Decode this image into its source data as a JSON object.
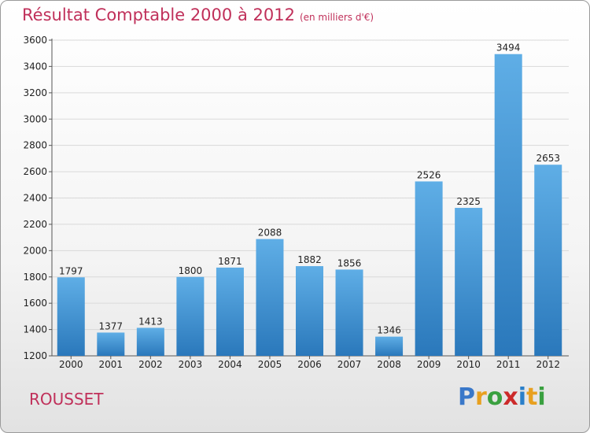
{
  "title": "Résultat Comptable 2000 à 2012",
  "subtitle": "(en milliers d'€)",
  "commune": "ROUSSET",
  "logo": {
    "letters": [
      "P",
      "r",
      "o",
      "x",
      "i",
      "t",
      "i"
    ],
    "colors": [
      "#3a78c9",
      "#e8a020",
      "#3aa040",
      "#cc2a2a",
      "#2a7fc9",
      "#e8a020",
      "#3aa040"
    ]
  },
  "colors": {
    "bar_light": "#5faee6",
    "bar_dark": "#2a78bb",
    "title": "#c0305a",
    "grid": "#d9d9d9"
  },
  "chart_data": {
    "type": "bar",
    "title": "Résultat Comptable 2000 à 2012",
    "subtitle": "(en milliers d'€)",
    "categories": [
      "2000",
      "2001",
      "2002",
      "2003",
      "2004",
      "2005",
      "2006",
      "2007",
      "2008",
      "2009",
      "2010",
      "2011",
      "2012"
    ],
    "values": [
      1797,
      1377,
      1413,
      1800,
      1871,
      2088,
      1882,
      1856,
      1346,
      2526,
      2325,
      3494,
      2653
    ],
    "ylim": [
      1200,
      3600
    ],
    "yticks": [
      1200,
      1400,
      1600,
      1800,
      2000,
      2200,
      2400,
      2600,
      2800,
      3000,
      3200,
      3400,
      3600
    ],
    "grid": true,
    "legend": "none"
  }
}
